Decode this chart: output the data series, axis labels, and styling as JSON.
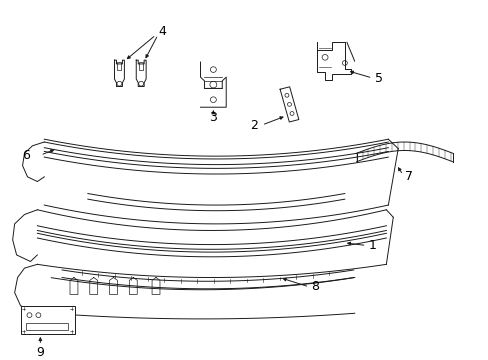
{
  "bg_color": "#ffffff",
  "lc": "#1a1a1a",
  "label_color": "#000000",
  "fig_width": 4.89,
  "fig_height": 3.6,
  "dpi": 100,
  "lw": 0.7
}
